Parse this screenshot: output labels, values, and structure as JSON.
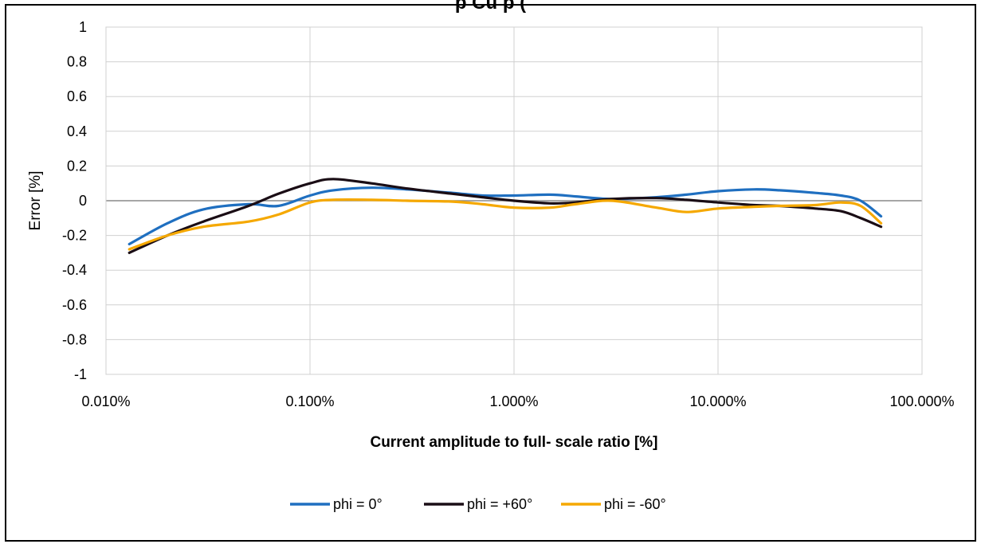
{
  "chart_data": {
    "type": "line",
    "title": "p Cu p (",
    "xlabel": "Current  amplitude to  full- scale ratio [%]",
    "ylabel": "Error  [%]",
    "x_scale": "log",
    "xlim": [
      0.01,
      100
    ],
    "ylim": [
      -1,
      1
    ],
    "x_ticks": [
      "0.010%",
      "0.100%",
      "1.000%",
      "10.000%",
      "100.000%"
    ],
    "y_ticks": [
      "1",
      "0.8",
      "0.6",
      "0.4",
      "0.2",
      "0",
      "-0.2",
      "-0.4",
      "-0.6",
      "-0.8",
      "-1"
    ],
    "grid": true,
    "legend_position": "bottom",
    "series": [
      {
        "name": "phi  = 0°",
        "color": "#1f6fc0",
        "x": [
          0.013,
          0.02,
          0.03,
          0.05,
          0.07,
          0.1,
          0.13,
          0.2,
          0.3,
          0.5,
          0.7,
          1.0,
          1.5,
          2.0,
          3.0,
          5.0,
          7.0,
          10.0,
          15.0,
          20.0,
          30.0,
          40.0,
          50.0,
          63.0
        ],
        "y": [
          -0.25,
          -0.13,
          -0.05,
          -0.02,
          -0.03,
          0.03,
          0.06,
          0.075,
          0.065,
          0.045,
          0.03,
          0.03,
          0.035,
          0.025,
          0.01,
          0.02,
          0.035,
          0.055,
          0.065,
          0.06,
          0.045,
          0.03,
          0.0,
          -0.09
        ]
      },
      {
        "name": "phi  =  +60°",
        "color": "#1a0d15",
        "x": [
          0.013,
          0.02,
          0.03,
          0.05,
          0.07,
          0.1,
          0.13,
          0.2,
          0.3,
          0.5,
          0.7,
          1.0,
          1.5,
          2.0,
          3.0,
          5.0,
          7.0,
          10.0,
          15.0,
          20.0,
          30.0,
          40.0,
          50.0,
          63.0
        ],
        "y": [
          -0.3,
          -0.2,
          -0.12,
          -0.03,
          0.04,
          0.1,
          0.125,
          0.1,
          0.07,
          0.04,
          0.02,
          0.0,
          -0.015,
          -0.01,
          0.01,
          0.015,
          0.005,
          -0.01,
          -0.025,
          -0.03,
          -0.045,
          -0.06,
          -0.1,
          -0.15
        ]
      },
      {
        "name": "phi  =  -60°",
        "color": "#f5a800",
        "x": [
          0.013,
          0.02,
          0.03,
          0.05,
          0.07,
          0.1,
          0.13,
          0.2,
          0.3,
          0.5,
          0.7,
          1.0,
          1.5,
          2.0,
          3.0,
          5.0,
          7.0,
          10.0,
          15.0,
          20.0,
          30.0,
          40.0,
          50.0,
          63.0
        ],
        "y": [
          -0.28,
          -0.2,
          -0.15,
          -0.12,
          -0.08,
          -0.01,
          0.005,
          0.005,
          0.0,
          -0.005,
          -0.02,
          -0.04,
          -0.04,
          -0.02,
          -0.0,
          -0.04,
          -0.065,
          -0.045,
          -0.035,
          -0.03,
          -0.025,
          -0.01,
          -0.03,
          -0.13
        ]
      }
    ]
  }
}
